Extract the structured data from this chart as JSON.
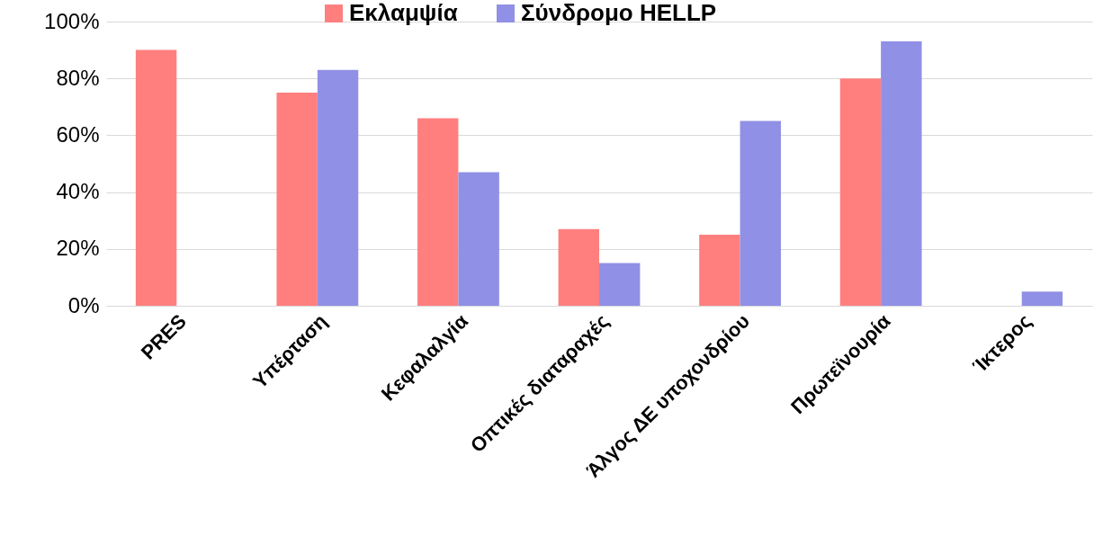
{
  "chart_data": {
    "type": "bar",
    "categories": [
      "PRES",
      "Υπέρταση",
      "Κεφαλαλγία",
      "Οπτικές διαταραχές",
      "Άλγος ΔΕ υποχονδρίου",
      "Πρωτεϊνουρία",
      "Ίκτερος"
    ],
    "series": [
      {
        "name": "Εκλαμψία",
        "color": "#ff7f7f",
        "values": [
          90,
          75,
          66,
          27,
          25,
          80,
          null
        ]
      },
      {
        "name": "Σύνδρομο HELLP",
        "color": "#9090e6",
        "values": [
          null,
          83,
          47,
          15,
          65,
          93,
          5
        ]
      }
    ],
    "ylim": [
      0,
      100
    ],
    "yticks": [
      {
        "value": 0,
        "label": "0%"
      },
      {
        "value": 20,
        "label": "20%"
      },
      {
        "value": 40,
        "label": "40%"
      },
      {
        "value": 60,
        "label": "60%"
      },
      {
        "value": 80,
        "label": "80%"
      },
      {
        "value": 100,
        "label": "100%"
      }
    ],
    "grid": true,
    "legend": "top"
  }
}
